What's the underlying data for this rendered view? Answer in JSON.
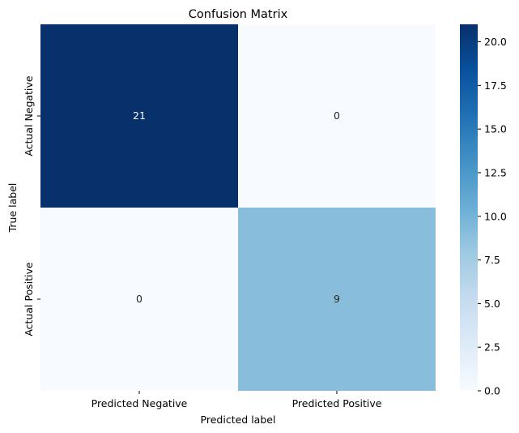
{
  "chart_data": {
    "type": "heatmap",
    "title": "Confusion Matrix",
    "xlabel": "Predicted label",
    "ylabel": "True label",
    "x_categories": [
      "Predicted Negative",
      "Predicted Positive"
    ],
    "y_categories": [
      "Actual Negative",
      "Actual Positive"
    ],
    "values": [
      [
        21,
        0
      ],
      [
        0,
        9
      ]
    ],
    "colormap": "Blues",
    "colorbar": {
      "range": [
        0,
        21
      ],
      "ticks": [
        0.0,
        2.5,
        5.0,
        7.5,
        10.0,
        12.5,
        15.0,
        17.5,
        20.0
      ],
      "tick_labels": [
        "0.0",
        "2.5",
        "5.0",
        "7.5",
        "10.0",
        "12.5",
        "15.0",
        "17.5",
        "20.0"
      ]
    },
    "colors": {
      "min": "#f7fbff",
      "mid": "#89bedc",
      "max": "#08306b",
      "text_on_dark": "#ffffff",
      "text_on_light": "#262626"
    }
  }
}
